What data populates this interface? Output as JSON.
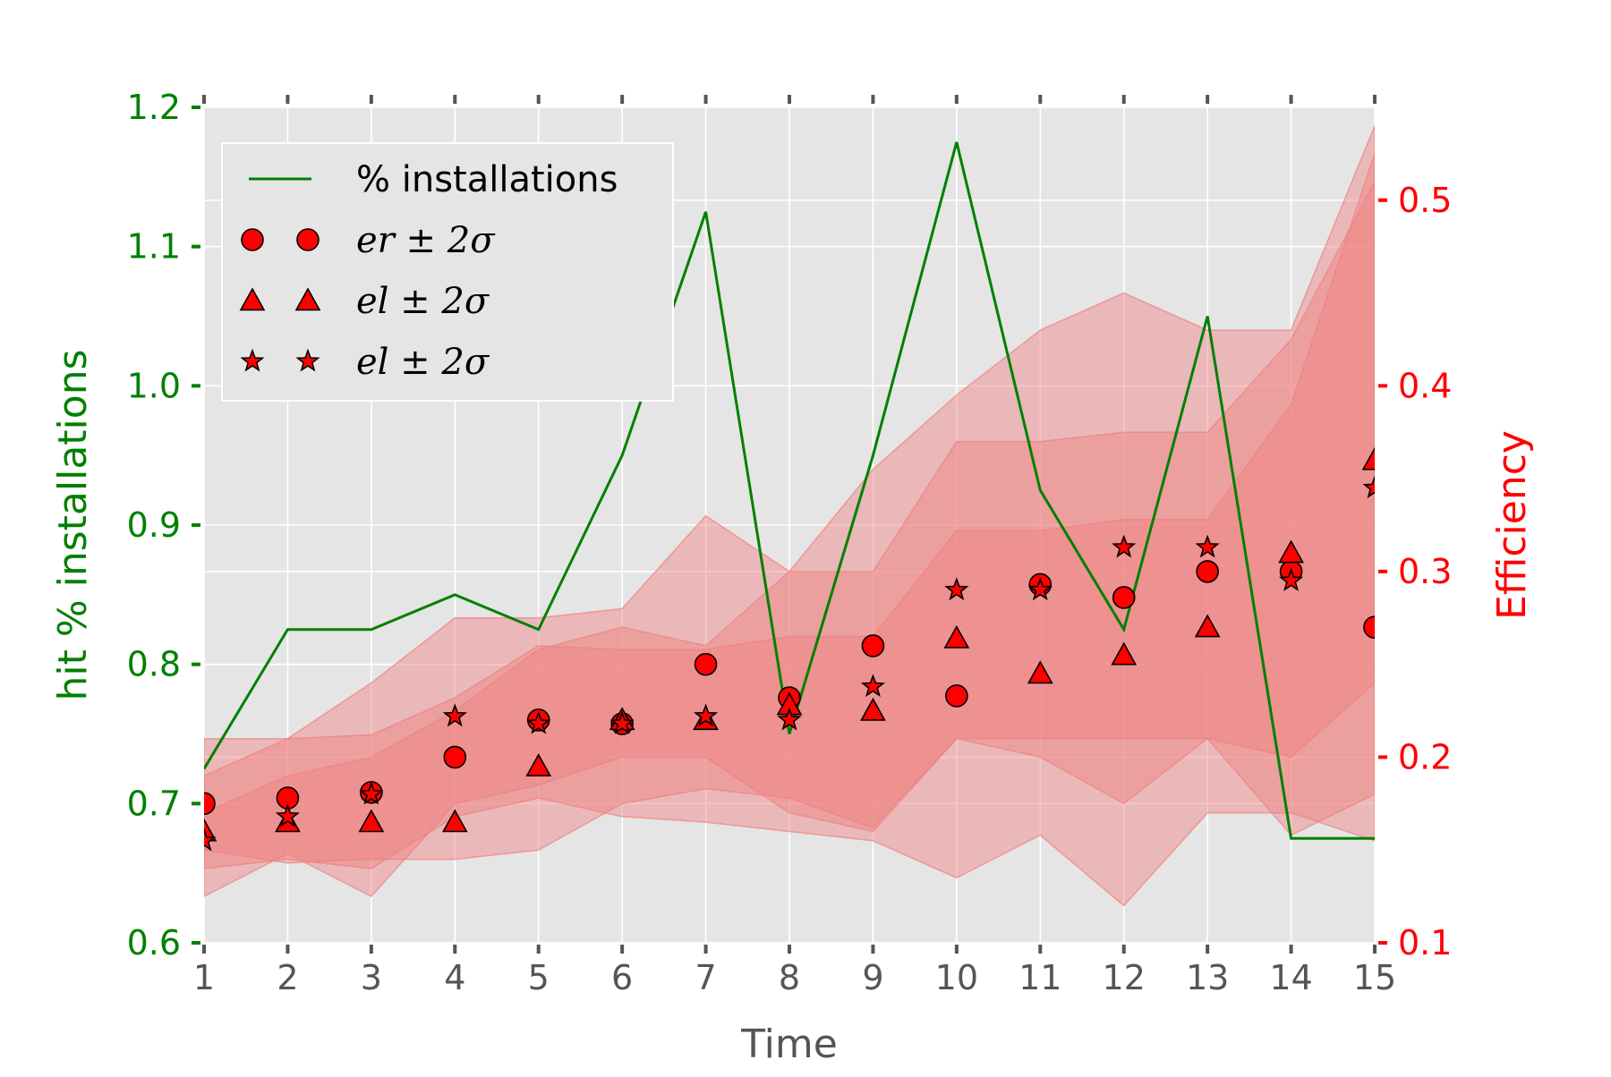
{
  "chart_data": {
    "type": "line",
    "xlabel": "Time",
    "ylabel_left": "hit % installations",
    "ylabel_right": "Efficiency",
    "x": [
      1,
      2,
      3,
      4,
      5,
      6,
      7,
      8,
      9,
      10,
      11,
      12,
      13,
      14,
      15
    ],
    "x_ticks": [
      "1",
      "2",
      "3",
      "4",
      "5",
      "6",
      "7",
      "8",
      "9",
      "10",
      "11",
      "12",
      "13",
      "14",
      "15"
    ],
    "xlim": [
      1,
      15
    ],
    "ylim_left": [
      0.6,
      1.2
    ],
    "ylim_right": [
      0.1,
      0.55
    ],
    "y_ticks_left": [
      "0.6",
      "0.7",
      "0.8",
      "0.9",
      "1.0",
      "1.1",
      "1.2"
    ],
    "y_ticks_right": [
      "0.1",
      "0.2",
      "0.3",
      "0.4",
      "0.5"
    ],
    "grid": true,
    "legend_position": "top-left",
    "colors": {
      "left_axis": "#008000",
      "right_axis": "#ff0000",
      "background": "#e5e5e5",
      "band": "#f08080",
      "marker": "#ff0000"
    },
    "series": [
      {
        "name": "% installations",
        "axis": "left",
        "kind": "line",
        "values": [
          0.725,
          0.825,
          0.825,
          0.85,
          0.825,
          0.95,
          1.125,
          0.75,
          0.95,
          1.175,
          0.925,
          0.825,
          1.05,
          0.675,
          0.675
        ]
      },
      {
        "name": "er ± 2σ",
        "axis": "right",
        "kind": "markers",
        "marker": "circle",
        "values": [
          0.175,
          0.178,
          0.181,
          0.2,
          0.22,
          0.218,
          0.25,
          0.232,
          0.26,
          0.233,
          0.293,
          0.286,
          0.3,
          0.3,
          0.27
        ],
        "lower": [
          0.14,
          0.145,
          0.14,
          0.168,
          0.178,
          0.168,
          0.165,
          0.16,
          0.155,
          0.135,
          0.158,
          0.12,
          0.17,
          0.17,
          0.155
        ],
        "upper": [
          0.21,
          0.21,
          0.212,
          0.232,
          0.26,
          0.258,
          0.258,
          0.265,
          0.265,
          0.322,
          0.322,
          0.328,
          0.328,
          0.39,
          0.525
        ]
      },
      {
        "name": "el ± 2σ",
        "axis": "right",
        "kind": "markers",
        "marker": "triangle",
        "values": [
          0.16,
          0.165,
          0.165,
          0.165,
          0.195,
          0.22,
          0.22,
          0.228,
          0.225,
          0.264,
          0.245,
          0.255,
          0.27,
          0.31,
          0.36
        ],
        "lower": [
          0.15,
          0.143,
          0.145,
          0.145,
          0.15,
          0.175,
          0.183,
          0.178,
          0.162,
          0.21,
          0.21,
          0.21,
          0.21,
          0.158,
          0.18
        ],
        "upper": [
          0.17,
          0.19,
          0.2,
          0.225,
          0.258,
          0.27,
          0.26,
          0.3,
          0.3,
          0.37,
          0.37,
          0.375,
          0.375,
          0.425,
          0.51
        ]
      },
      {
        "name": "el ± 2σ",
        "axis": "right",
        "kind": "markers",
        "marker": "star",
        "values": [
          0.155,
          0.168,
          0.18,
          0.222,
          0.218,
          0.218,
          0.222,
          0.22,
          0.238,
          0.29,
          0.29,
          0.313,
          0.313,
          0.295,
          0.345
        ],
        "lower": [
          0.125,
          0.148,
          0.125,
          0.175,
          0.185,
          0.2,
          0.2,
          0.17,
          0.16,
          0.21,
          0.2,
          0.175,
          0.21,
          0.2,
          0.24
        ],
        "upper": [
          0.19,
          0.21,
          0.24,
          0.275,
          0.275,
          0.28,
          0.33,
          0.3,
          0.355,
          0.395,
          0.43,
          0.45,
          0.43,
          0.43,
          0.54
        ]
      }
    ]
  }
}
